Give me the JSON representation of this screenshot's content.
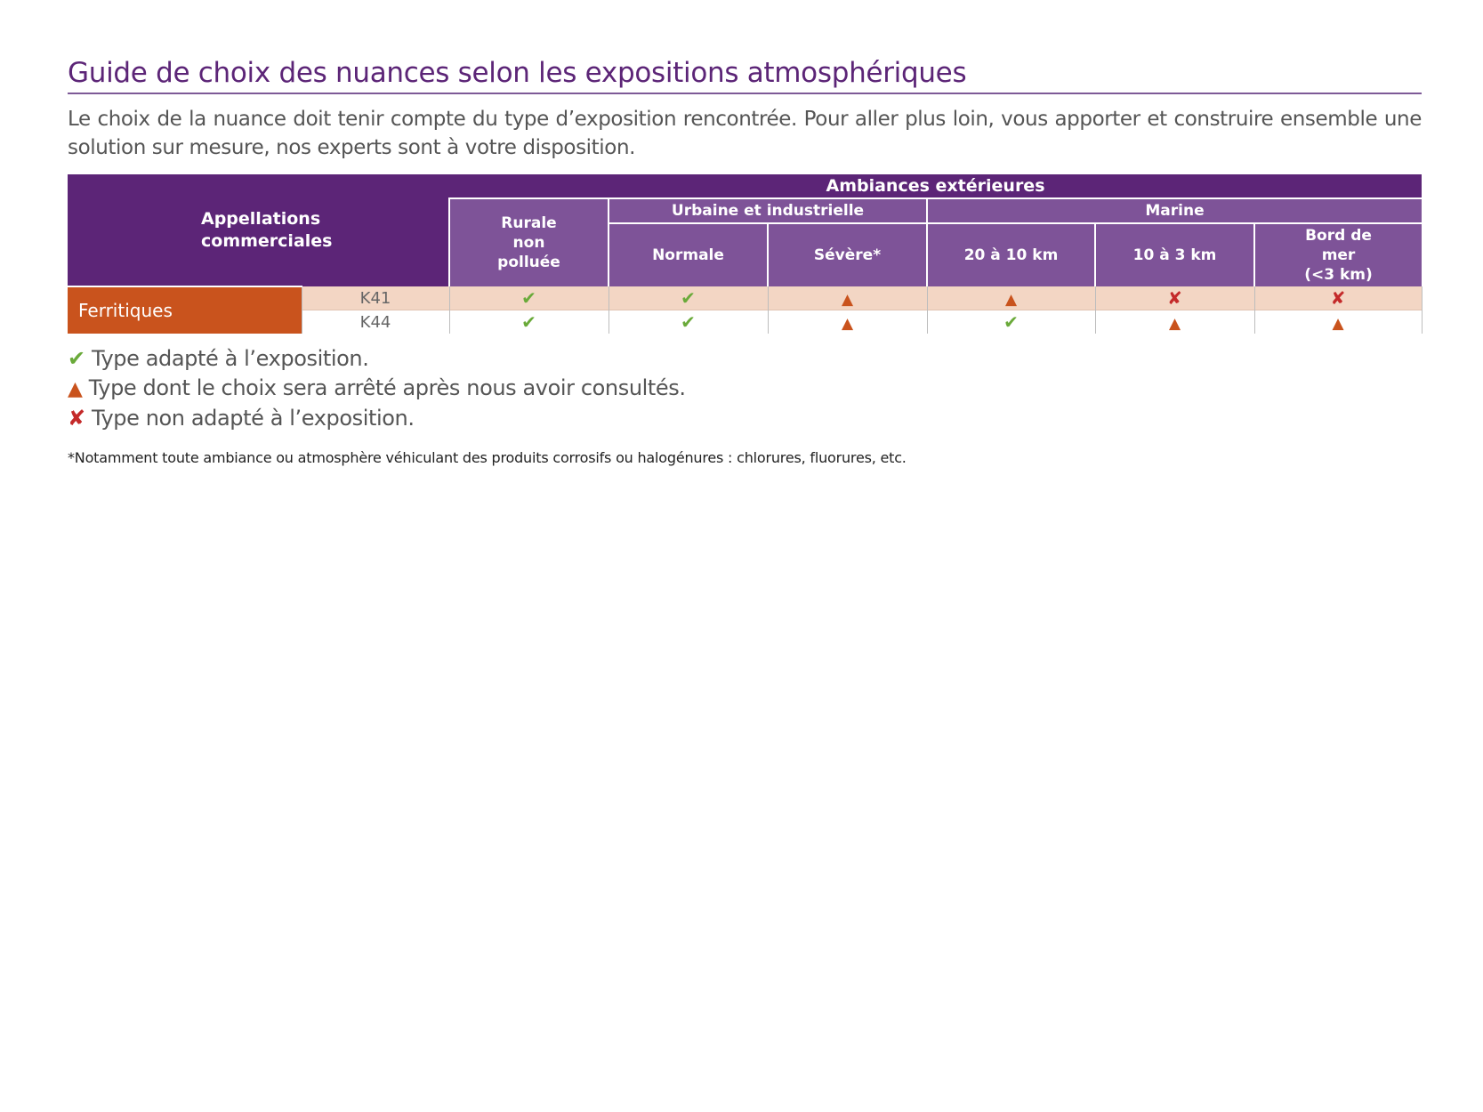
{
  "title": "Guide de choix des nuances selon les expositions atmosphériques",
  "intro": "Le choix de la nuance doit tenir compte du type d’exposition rencontrée. Pour aller plus loin, vous apporter et construire ensemble une solution sur mesure, nos experts sont à votre disposition.",
  "table": {
    "header_main": "Ambiances extérieures",
    "header_appellations": "Appellations commerciales",
    "col_rurale": "Rurale non polluée",
    "group_urbaine": "Urbaine et industrielle",
    "group_marine": "Marine",
    "col_normale": "Normale",
    "col_severe": "Sévère*",
    "col_20_10": "20 à 10 km",
    "col_10_3": "10 à 3 km",
    "col_bord": "Bord de mer (<3 km)",
    "family": "Ferritiques",
    "rows": [
      {
        "grade": "K41",
        "values": [
          "check",
          "check",
          "triangle",
          "triangle",
          "cross",
          "cross"
        ]
      },
      {
        "grade": "K44",
        "values": [
          "check",
          "check",
          "triangle",
          "check",
          "triangle",
          "triangle"
        ]
      }
    ]
  },
  "symbols": {
    "check": "✔",
    "triangle": "▲",
    "cross": "✘"
  },
  "legend": [
    {
      "symbol": "check",
      "text": "Type adapté à l’exposition."
    },
    {
      "symbol": "triangle",
      "text": "Type dont le choix sera arrêté après nous avoir consultés."
    },
    {
      "symbol": "cross",
      "text": "Type non adapté à l’exposition."
    }
  ],
  "footnote": "*Notamment toute ambiance ou atmosphère véhiculant des produits corrosifs ou halogénures : chlorures, fluorures, etc.",
  "colors": {
    "purple_dark": "#5c2577",
    "purple_mid": "#7e5398",
    "orange": "#c9531d",
    "row_tint": "#f3d6c4",
    "check_green": "#6aaa3a",
    "cross_red": "#c42a2a"
  }
}
